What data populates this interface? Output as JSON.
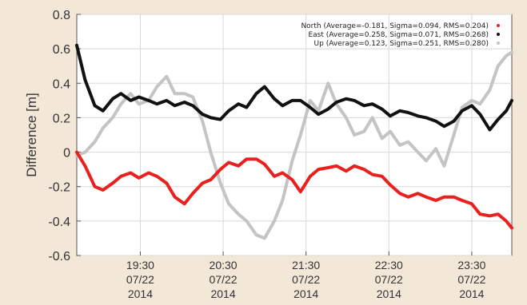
{
  "chart_data": {
    "type": "line",
    "ylabel": "Difference [m]",
    "ylim": [
      -0.6,
      0.8
    ],
    "yticks": [
      "0.8",
      "0.6",
      "0.4",
      "0.2",
      "0",
      "-0.2",
      "-0.4",
      "-0.6"
    ],
    "xlim": [
      "2014-07-22 18:44",
      "2014-07-22 23:59"
    ],
    "xticks": [
      {
        "time": "19:30",
        "date": "07/22",
        "year": "2014",
        "at": "2014-07-22 19:30"
      },
      {
        "time": "20:30",
        "date": "07/22",
        "year": "2014",
        "at": "2014-07-22 20:30"
      },
      {
        "time": "21:30",
        "date": "07/22",
        "year": "2014",
        "at": "2014-07-22 21:30"
      },
      {
        "time": "22:30",
        "date": "07/22",
        "year": "2014",
        "at": "2014-07-22 22:30"
      },
      {
        "time": "23:30",
        "date": "07/22",
        "year": "2014",
        "at": "2014-07-22 23:30"
      }
    ],
    "grid": true,
    "legend_position": "top-right",
    "series": [
      {
        "name": "North (Average=-0.181, Sigma=0.094, RMS=0.204)",
        "color": "#e8201e",
        "points": [
          [
            "18:44",
            0.0
          ],
          [
            "18:50",
            -0.08
          ],
          [
            "18:57",
            -0.2
          ],
          [
            "19:03",
            -0.22
          ],
          [
            "19:10",
            -0.18
          ],
          [
            "19:16",
            -0.14
          ],
          [
            "19:23",
            -0.12
          ],
          [
            "19:29",
            -0.15
          ],
          [
            "19:36",
            -0.12
          ],
          [
            "19:42",
            -0.14
          ],
          [
            "19:49",
            -0.18
          ],
          [
            "19:55",
            -0.26
          ],
          [
            "20:02",
            -0.3
          ],
          [
            "20:08",
            -0.24
          ],
          [
            "20:15",
            -0.18
          ],
          [
            "20:21",
            -0.16
          ],
          [
            "20:28",
            -0.1
          ],
          [
            "20:34",
            -0.06
          ],
          [
            "20:41",
            -0.08
          ],
          [
            "20:47",
            -0.04
          ],
          [
            "20:54",
            -0.04
          ],
          [
            "21:00",
            -0.07
          ],
          [
            "21:07",
            -0.14
          ],
          [
            "21:13",
            -0.12
          ],
          [
            "21:20",
            -0.16
          ],
          [
            "21:26",
            -0.23
          ],
          [
            "21:33",
            -0.14
          ],
          [
            "21:39",
            -0.1
          ],
          [
            "21:46",
            -0.09
          ],
          [
            "21:52",
            -0.08
          ],
          [
            "21:59",
            -0.11
          ],
          [
            "22:05",
            -0.08
          ],
          [
            "22:12",
            -0.1
          ],
          [
            "22:18",
            -0.13
          ],
          [
            "22:25",
            -0.14
          ],
          [
            "22:31",
            -0.19
          ],
          [
            "22:38",
            -0.24
          ],
          [
            "22:44",
            -0.26
          ],
          [
            "22:51",
            -0.24
          ],
          [
            "22:57",
            -0.26
          ],
          [
            "23:04",
            -0.28
          ],
          [
            "23:10",
            -0.26
          ],
          [
            "23:17",
            -0.26
          ],
          [
            "23:23",
            -0.28
          ],
          [
            "23:30",
            -0.3
          ],
          [
            "23:36",
            -0.36
          ],
          [
            "23:43",
            -0.37
          ],
          [
            "23:49",
            -0.36
          ],
          [
            "23:55",
            -0.4
          ],
          [
            "23:59",
            -0.44
          ]
        ]
      },
      {
        "name": "East (Average=0.258, Sigma=0.071, RMS=0.268)",
        "color": "#111111",
        "points": [
          [
            "18:44",
            0.62
          ],
          [
            "18:50",
            0.42
          ],
          [
            "18:57",
            0.27
          ],
          [
            "19:03",
            0.24
          ],
          [
            "19:10",
            0.31
          ],
          [
            "19:16",
            0.34
          ],
          [
            "19:23",
            0.3
          ],
          [
            "19:29",
            0.32
          ],
          [
            "19:36",
            0.3
          ],
          [
            "19:42",
            0.28
          ],
          [
            "19:49",
            0.3
          ],
          [
            "19:55",
            0.27
          ],
          [
            "20:02",
            0.29
          ],
          [
            "20:08",
            0.27
          ],
          [
            "20:15",
            0.22
          ],
          [
            "20:21",
            0.2
          ],
          [
            "20:28",
            0.19
          ],
          [
            "20:34",
            0.24
          ],
          [
            "20:41",
            0.28
          ],
          [
            "20:47",
            0.26
          ],
          [
            "20:54",
            0.34
          ],
          [
            "21:00",
            0.38
          ],
          [
            "21:07",
            0.31
          ],
          [
            "21:13",
            0.27
          ],
          [
            "21:20",
            0.3
          ],
          [
            "21:26",
            0.3
          ],
          [
            "21:33",
            0.26
          ],
          [
            "21:39",
            0.22
          ],
          [
            "21:46",
            0.25
          ],
          [
            "21:52",
            0.29
          ],
          [
            "21:59",
            0.31
          ],
          [
            "22:05",
            0.3
          ],
          [
            "22:12",
            0.27
          ],
          [
            "22:18",
            0.28
          ],
          [
            "22:25",
            0.25
          ],
          [
            "22:31",
            0.21
          ],
          [
            "22:38",
            0.24
          ],
          [
            "22:44",
            0.23
          ],
          [
            "22:51",
            0.21
          ],
          [
            "22:57",
            0.2
          ],
          [
            "23:04",
            0.18
          ],
          [
            "23:10",
            0.15
          ],
          [
            "23:17",
            0.18
          ],
          [
            "23:23",
            0.24
          ],
          [
            "23:30",
            0.27
          ],
          [
            "23:36",
            0.22
          ],
          [
            "23:43",
            0.13
          ],
          [
            "23:49",
            0.19
          ],
          [
            "23:55",
            0.24
          ],
          [
            "23:59",
            0.3
          ]
        ]
      },
      {
        "name": "Up (Average=0.123, Sigma=0.251, RMS=0.280)",
        "color": "#c4c4c4",
        "points": [
          [
            "18:44",
            -0.02
          ],
          [
            "18:50",
            0.0
          ],
          [
            "18:57",
            0.06
          ],
          [
            "19:03",
            0.14
          ],
          [
            "19:10",
            0.2
          ],
          [
            "19:16",
            0.28
          ],
          [
            "19:23",
            0.34
          ],
          [
            "19:29",
            0.28
          ],
          [
            "19:36",
            0.3
          ],
          [
            "19:42",
            0.38
          ],
          [
            "19:49",
            0.44
          ],
          [
            "19:55",
            0.34
          ],
          [
            "20:02",
            0.34
          ],
          [
            "20:08",
            0.32
          ],
          [
            "20:15",
            0.18
          ],
          [
            "20:21",
            0.0
          ],
          [
            "20:28",
            -0.18
          ],
          [
            "20:34",
            -0.3
          ],
          [
            "20:41",
            -0.36
          ],
          [
            "20:47",
            -0.4
          ],
          [
            "20:54",
            -0.48
          ],
          [
            "21:00",
            -0.5
          ],
          [
            "21:07",
            -0.4
          ],
          [
            "21:13",
            -0.28
          ],
          [
            "21:20",
            -0.05
          ],
          [
            "21:26",
            0.1
          ],
          [
            "21:33",
            0.3
          ],
          [
            "21:39",
            0.24
          ],
          [
            "21:46",
            0.4
          ],
          [
            "21:52",
            0.28
          ],
          [
            "21:59",
            0.2
          ],
          [
            "22:05",
            0.1
          ],
          [
            "22:12",
            0.12
          ],
          [
            "22:18",
            0.2
          ],
          [
            "22:25",
            0.08
          ],
          [
            "22:31",
            0.12
          ],
          [
            "22:38",
            0.04
          ],
          [
            "22:44",
            0.06
          ],
          [
            "22:51",
            0.0
          ],
          [
            "22:57",
            -0.05
          ],
          [
            "23:04",
            0.02
          ],
          [
            "23:10",
            -0.08
          ],
          [
            "23:17",
            0.1
          ],
          [
            "23:23",
            0.26
          ],
          [
            "23:30",
            0.3
          ],
          [
            "23:36",
            0.28
          ],
          [
            "23:43",
            0.36
          ],
          [
            "23:49",
            0.5
          ],
          [
            "23:55",
            0.56
          ],
          [
            "23:59",
            0.58
          ]
        ]
      }
    ]
  }
}
